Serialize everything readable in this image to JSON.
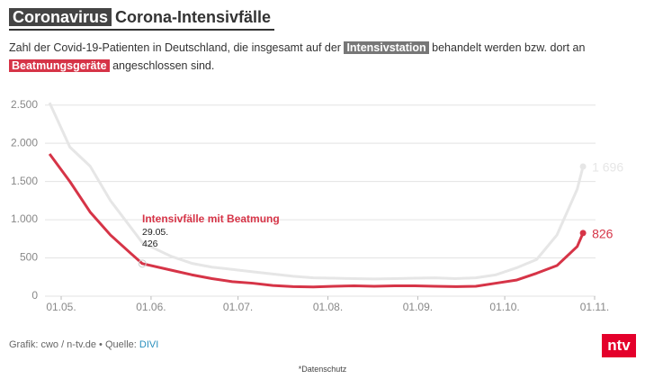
{
  "header": {
    "kicker": "Coronavirus",
    "title": "Corona-Intensivfälle"
  },
  "chart_data": {
    "type": "line",
    "subtitle": {
      "part1": "Zahl der Covid-19-Patienten in Deutschland, die insgesamt auf der",
      "highlight1": "Intensivstation",
      "part2": "behandelt werden bzw. dort an",
      "highlight2": "Beatmungsgeräte",
      "part3": "angeschlossen sind."
    },
    "x": [
      "27.04.",
      "04.05.",
      "11.05.",
      "18.05.",
      "25.05.",
      "29.05.",
      "08.06.",
      "15.06.",
      "22.06.",
      "29.06.",
      "06.07.",
      "13.07.",
      "20.07.",
      "27.07.",
      "03.08.",
      "10.08.",
      "17.08.",
      "24.08.",
      "31.08.",
      "07.09.",
      "14.09.",
      "21.09.",
      "28.09.",
      "05.10.",
      "12.10.",
      "19.10.",
      "26.10.",
      "28.10."
    ],
    "series": [
      {
        "name": "Intensivfälle mit Beatmung",
        "color": "#d63447",
        "values": [
          1860,
          1500,
          1100,
          800,
          560,
          426,
          340,
          280,
          230,
          190,
          170,
          140,
          125,
          120,
          130,
          135,
          130,
          135,
          135,
          130,
          125,
          130,
          170,
          210,
          300,
          400,
          650,
          826
        ],
        "end_label": "826"
      },
      {
        "name": null,
        "color": "#e6e6e6",
        "values": [
          2530,
          1950,
          1700,
          1250,
          900,
          700,
          520,
          430,
          380,
          350,
          320,
          290,
          260,
          240,
          235,
          230,
          225,
          230,
          235,
          240,
          230,
          240,
          280,
          370,
          480,
          800,
          1400,
          1696
        ],
        "end_label": "1 696"
      }
    ],
    "ylim": [
      0,
      2600
    ],
    "yticks": [
      0,
      500,
      {
        "value": 1000,
        "label": "1.000"
      },
      {
        "value": 1500,
        "label": "1.500"
      },
      {
        "value": 2000,
        "label": "2.000"
      },
      {
        "value": 2500,
        "label": "2.500"
      }
    ],
    "xticks": [
      "01.05.",
      "01.06.",
      "01.07.",
      "01.08.",
      "01.09.",
      "01.10.",
      "01.11."
    ],
    "grid": true,
    "annotation_index": 5
  },
  "footer": {
    "credit": "Grafik: cwo / n-tv.de • Quelle:",
    "source": "DIVI",
    "logo": "ntv",
    "privacy": "*Datenschutz"
  }
}
